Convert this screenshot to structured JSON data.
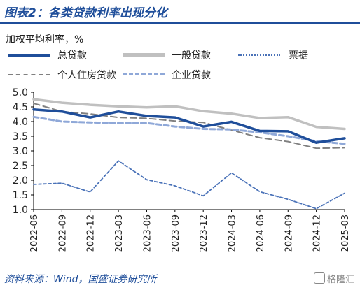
{
  "header": {
    "title": "图表2：各类贷款利率出现分化"
  },
  "unit_label": "加权平均利率，%",
  "footer": {
    "source": "资料来源：Wind，国盛证券研究所",
    "watermark": "格隆汇"
  },
  "chart_data": {
    "type": "line",
    "categories": [
      "2022-06",
      "2022-09",
      "2022-12",
      "2023-03",
      "2023-06",
      "2023-09",
      "2023-12",
      "2024-03",
      "2024-06",
      "2024-09",
      "2024-12",
      "2025-03"
    ],
    "ylim": [
      1.0,
      5.0
    ],
    "yticks": [
      "1.0",
      "1.5",
      "2.0",
      "2.5",
      "3.0",
      "3.5",
      "4.0",
      "4.5",
      "5.0"
    ],
    "grid": false,
    "legend_position": "top",
    "series": [
      {
        "name": "总贷款",
        "color": "#1f4e9a",
        "style": "solid-thick",
        "values": [
          4.41,
          4.34,
          4.14,
          4.34,
          4.19,
          4.14,
          3.83,
          3.99,
          3.68,
          3.67,
          3.28,
          3.43
        ]
      },
      {
        "name": "一般贷款",
        "color": "#c0c0c0",
        "style": "solid-thick",
        "values": [
          4.76,
          4.64,
          4.57,
          4.52,
          4.48,
          4.52,
          4.35,
          4.27,
          4.12,
          4.15,
          3.82,
          3.75
        ]
      },
      {
        "name": "票据",
        "color": "#4a72b8",
        "style": "dotted",
        "values": [
          1.86,
          1.9,
          1.6,
          2.66,
          2.02,
          1.81,
          1.47,
          2.25,
          1.61,
          1.35,
          1.03,
          1.56
        ]
      },
      {
        "name": "个人住房贷款",
        "color": "#808080",
        "style": "dashed",
        "values": [
          4.62,
          4.34,
          4.26,
          4.14,
          4.11,
          4.02,
          3.97,
          3.71,
          3.45,
          3.32,
          3.09,
          3.11
        ]
      },
      {
        "name": "企业贷款",
        "color": "#8fa8d8",
        "style": "dashed-thick",
        "values": [
          4.16,
          4.0,
          3.97,
          3.95,
          3.95,
          3.83,
          3.75,
          3.73,
          3.63,
          3.5,
          3.33,
          3.24
        ]
      }
    ]
  }
}
